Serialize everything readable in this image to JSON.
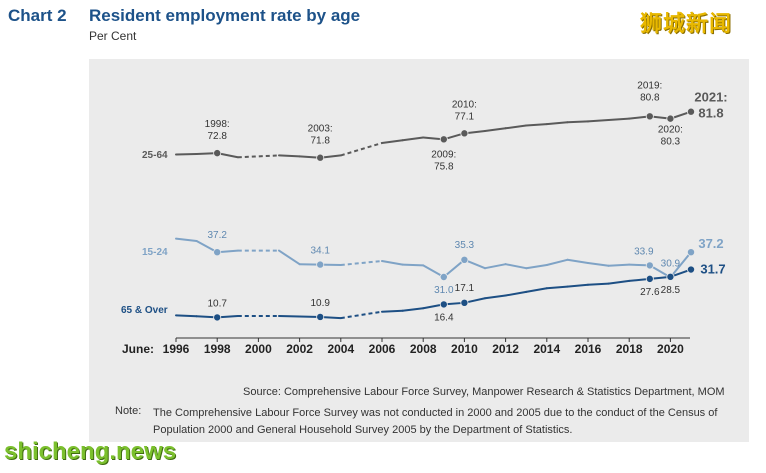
{
  "header": {
    "chart_number": "Chart 2",
    "title": "Resident employment rate by age",
    "subtitle": "Per Cent"
  },
  "watermarks": {
    "top": "狮城新闻",
    "bottom": "shicheng.news"
  },
  "footer": {
    "source": "Source: Comprehensive Labour Force Survey, Manpower Research & Statistics Department, MOM",
    "note_label": "Note:",
    "note": "The Comprehensive Labour Force Survey was not conducted in 2000 and 2005 due to the conduct of the Census of Population 2000 and General Household Survey 2005 by the Department of Statistics."
  },
  "chart_data": {
    "type": "line",
    "title": "Resident employment rate by age",
    "subtitle": "Per Cent",
    "x_axis_prefix": "June:",
    "x_ticks": [
      1996,
      1998,
      2000,
      2002,
      2004,
      2006,
      2008,
      2010,
      2012,
      2014,
      2016,
      2018,
      2020
    ],
    "x_range": [
      1996,
      2021
    ],
    "missing_years": [
      2000,
      2005
    ],
    "grid": false,
    "colors": {
      "25-64": "#5a5a5a",
      "15-24": "#7fa3c6",
      "65 & Over": "#1d4f84",
      "axis": "#333333"
    },
    "series": [
      {
        "name": "25-64",
        "x": [
          1996,
          1997,
          1998,
          1999,
          2000,
          2001,
          2002,
          2003,
          2004,
          2005,
          2006,
          2007,
          2008,
          2009,
          2010,
          2011,
          2012,
          2013,
          2014,
          2015,
          2016,
          2017,
          2018,
          2019,
          2020,
          2021
        ],
        "values": [
          72.5,
          72.6,
          72.8,
          71.9,
          null,
          72.3,
          72.1,
          71.8,
          72.3,
          null,
          75.0,
          75.6,
          76.2,
          75.8,
          77.1,
          77.6,
          78.2,
          78.8,
          79.1,
          79.5,
          79.7,
          80.0,
          80.3,
          80.8,
          80.3,
          81.8
        ]
      },
      {
        "name": "15-24",
        "x": [
          1996,
          1997,
          1998,
          1999,
          2000,
          2001,
          2002,
          2003,
          2004,
          2005,
          2006,
          2007,
          2008,
          2009,
          2010,
          2011,
          2012,
          2013,
          2014,
          2015,
          2016,
          2017,
          2018,
          2019,
          2020,
          2021
        ],
        "values": [
          40.6,
          40.0,
          37.2,
          37.6,
          null,
          37.6,
          34.2,
          34.1,
          34.0,
          null,
          35.0,
          34.1,
          33.9,
          31.0,
          35.3,
          33.2,
          34.2,
          33.2,
          34.0,
          35.3,
          34.5,
          33.8,
          34.1,
          33.9,
          30.9,
          37.2
        ]
      },
      {
        "name": "65 & Over",
        "x": [
          1996,
          1997,
          1998,
          1999,
          2000,
          2001,
          2002,
          2003,
          2004,
          2005,
          2006,
          2007,
          2008,
          2009,
          2010,
          2011,
          2012,
          2013,
          2014,
          2015,
          2016,
          2017,
          2018,
          2019,
          2020,
          2021
        ],
        "values": [
          11.6,
          11.2,
          10.7,
          11.3,
          null,
          11.3,
          11.1,
          10.9,
          10.4,
          null,
          13.2,
          13.6,
          14.7,
          16.4,
          17.1,
          19.1,
          20.3,
          21.9,
          23.5,
          24.2,
          25.0,
          25.5,
          26.7,
          27.6,
          28.5,
          31.7
        ]
      }
    ],
    "annotations": [
      {
        "series": "25-64",
        "year": 1998,
        "label": [
          "1998:",
          "72.8"
        ],
        "marker": true
      },
      {
        "series": "25-64",
        "year": 2003,
        "label": [
          "2003:",
          "71.8"
        ],
        "marker": true
      },
      {
        "series": "25-64",
        "year": 2009,
        "label": [
          "2009:",
          "75.8"
        ],
        "marker": true
      },
      {
        "series": "25-64",
        "year": 2010,
        "label": [
          "2010:",
          "77.1"
        ],
        "marker": true
      },
      {
        "series": "25-64",
        "year": 2019,
        "label": [
          "2019:",
          "80.8"
        ],
        "marker": true
      },
      {
        "series": "25-64",
        "year": 2020,
        "label": [
          "2020:",
          "80.3"
        ],
        "marker": true
      },
      {
        "series": "25-64",
        "year": 2021,
        "label": [
          "2021:",
          "81.8"
        ],
        "marker": true
      },
      {
        "series": "15-24",
        "year": 1998,
        "label": [
          "37.2"
        ],
        "marker": true
      },
      {
        "series": "15-24",
        "year": 2003,
        "label": [
          "34.1"
        ],
        "marker": true
      },
      {
        "series": "15-24",
        "year": 2009,
        "label": [
          "31.0"
        ],
        "marker": true
      },
      {
        "series": "15-24",
        "year": 2010,
        "label": [
          "35.3"
        ],
        "marker": true
      },
      {
        "series": "15-24",
        "year": 2019,
        "label": [
          "33.9"
        ],
        "marker": true
      },
      {
        "series": "15-24",
        "year": 2020,
        "label": [
          "30.9"
        ],
        "marker": true
      },
      {
        "series": "15-24",
        "year": 2021,
        "label": [
          "37.2"
        ],
        "marker": true
      },
      {
        "series": "65 & Over",
        "year": 1998,
        "label": [
          "10.7"
        ],
        "marker": true
      },
      {
        "series": "65 & Over",
        "year": 2003,
        "label": [
          "10.9"
        ],
        "marker": true
      },
      {
        "series": "65 & Over",
        "year": 2009,
        "label": [
          "16.4"
        ],
        "marker": true
      },
      {
        "series": "65 & Over",
        "year": 2010,
        "label": [
          "17.1"
        ],
        "marker": true
      },
      {
        "series": "65 & Over",
        "year": 2019,
        "label": [
          "27.6"
        ],
        "marker": true
      },
      {
        "series": "65 & Over",
        "year": 2020,
        "label": [
          "28.5"
        ],
        "marker": true
      },
      {
        "series": "65 & Over",
        "year": 2021,
        "label": [
          "31.7"
        ],
        "marker": true
      }
    ]
  }
}
